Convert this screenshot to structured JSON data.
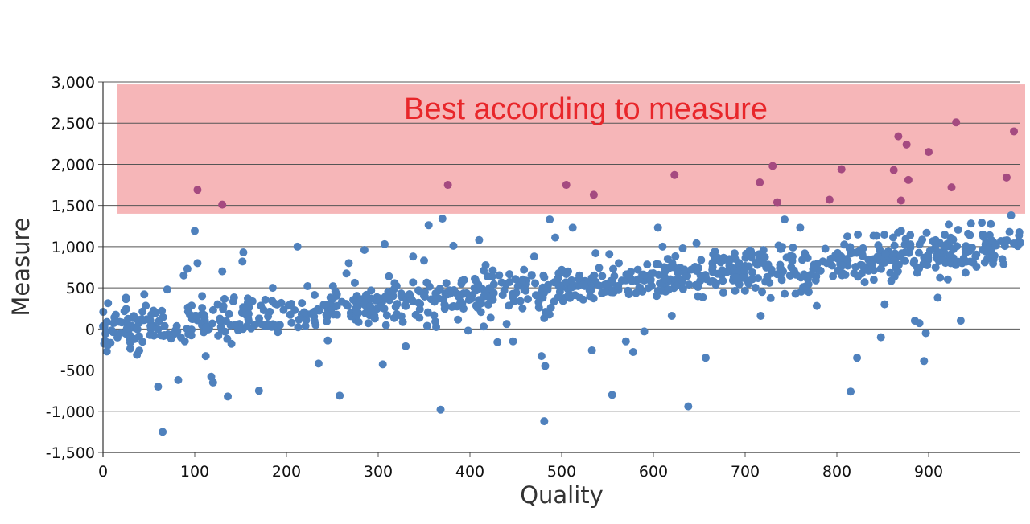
{
  "chart_data": {
    "type": "scatter",
    "xlabel": "Quality",
    "ylabel": "Measure",
    "xlim": [
      0,
      1000
    ],
    "ylim": [
      -1500,
      3000
    ],
    "x_ticks": [
      "0",
      "100",
      "200",
      "300",
      "400",
      "500",
      "600",
      "700",
      "800",
      "900"
    ],
    "y_ticks": [
      "3,000",
      "2,500",
      "2,000",
      "1,500",
      "1,000",
      "500",
      "0",
      "-500",
      "-1,000",
      "-1,500"
    ],
    "grid": true,
    "annotation": {
      "text": "Best according to measure",
      "y_range": [
        1400,
        2970
      ],
      "x_range": [
        15,
        1000
      ],
      "fill_color": "#f6b6b8",
      "text_color": "#e8262a"
    },
    "colors": {
      "points": "#4f81bd",
      "highlight_points": "#a54a80",
      "grid": "#555555"
    },
    "trend": {
      "slope": 1.0,
      "intercept": 0,
      "spread": 130,
      "count": 900,
      "seed": 7
    },
    "outliers": [
      [
        5,
        -200
      ],
      [
        25,
        380
      ],
      [
        45,
        420
      ],
      [
        60,
        -700
      ],
      [
        65,
        -1250
      ],
      [
        70,
        480
      ],
      [
        82,
        -620
      ],
      [
        88,
        650
      ],
      [
        92,
        730
      ],
      [
        100,
        1190
      ],
      [
        103,
        800
      ],
      [
        108,
        400
      ],
      [
        112,
        -330
      ],
      [
        118,
        -580
      ],
      [
        120,
        -650
      ],
      [
        125,
        300
      ],
      [
        130,
        700
      ],
      [
        136,
        -820
      ],
      [
        140,
        -180
      ],
      [
        152,
        820
      ],
      [
        153,
        930
      ],
      [
        170,
        -750
      ],
      [
        185,
        500
      ],
      [
        212,
        1000
      ],
      [
        223,
        520
      ],
      [
        235,
        -420
      ],
      [
        245,
        -140
      ],
      [
        258,
        -810
      ],
      [
        268,
        800
      ],
      [
        285,
        960
      ],
      [
        305,
        -430
      ],
      [
        307,
        1030
      ],
      [
        330,
        -210
      ],
      [
        338,
        880
      ],
      [
        350,
        830
      ],
      [
        355,
        1260
      ],
      [
        368,
        -980
      ],
      [
        370,
        1340
      ],
      [
        382,
        1010
      ],
      [
        398,
        -20
      ],
      [
        410,
        1080
      ],
      [
        415,
        30
      ],
      [
        430,
        -160
      ],
      [
        440,
        60
      ],
      [
        447,
        -150
      ],
      [
        470,
        880
      ],
      [
        478,
        -330
      ],
      [
        482,
        -450
      ],
      [
        481,
        -1120
      ],
      [
        487,
        1330
      ],
      [
        493,
        1110
      ],
      [
        512,
        1230
      ],
      [
        533,
        -260
      ],
      [
        537,
        920
      ],
      [
        555,
        -800
      ],
      [
        570,
        -150
      ],
      [
        578,
        -280
      ],
      [
        590,
        -30
      ],
      [
        605,
        1230
      ],
      [
        610,
        1000
      ],
      [
        620,
        160
      ],
      [
        632,
        980
      ],
      [
        638,
        -940
      ],
      [
        647,
        1040
      ],
      [
        657,
        -350
      ],
      [
        717,
        160
      ],
      [
        743,
        1330
      ],
      [
        760,
        1230
      ],
      [
        778,
        280
      ],
      [
        815,
        -760
      ],
      [
        822,
        -350
      ],
      [
        848,
        -100
      ],
      [
        852,
        300
      ],
      [
        870,
        1190
      ],
      [
        880,
        1140
      ],
      [
        885,
        100
      ],
      [
        890,
        70
      ],
      [
        895,
        -390
      ],
      [
        897,
        -50
      ],
      [
        910,
        380
      ],
      [
        935,
        100
      ],
      [
        945,
        1140
      ],
      [
        958,
        1290
      ],
      [
        990,
        1380
      ]
    ],
    "highlight": [
      [
        103,
        1690
      ],
      [
        130,
        1510
      ],
      [
        376,
        1750
      ],
      [
        505,
        1750
      ],
      [
        535,
        1630
      ],
      [
        623,
        1870
      ],
      [
        716,
        1780
      ],
      [
        730,
        1980
      ],
      [
        735,
        1540
      ],
      [
        792,
        1570
      ],
      [
        805,
        1940
      ],
      [
        862,
        1930
      ],
      [
        867,
        2340
      ],
      [
        870,
        1560
      ],
      [
        876,
        2240
      ],
      [
        878,
        1810
      ],
      [
        900,
        2150
      ],
      [
        925,
        1720
      ],
      [
        930,
        2510
      ],
      [
        985,
        1840
      ],
      [
        993,
        2400
      ]
    ]
  }
}
